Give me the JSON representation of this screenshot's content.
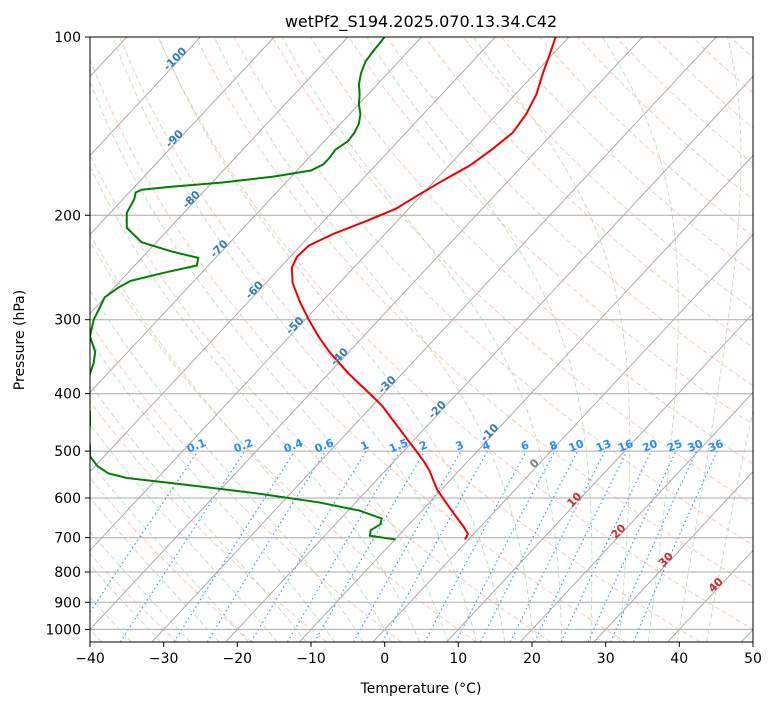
{
  "chart_data": {
    "type": "line",
    "title": "wetPf2_S194.2025.070.13.34.C42",
    "xlabel": "Temperature (°C)",
    "ylabel": "Pressure (hPa)",
    "xlim": [
      -40,
      50
    ],
    "ylim": [
      1050,
      100
    ],
    "y_scale": "log",
    "x_ticks": [
      -40,
      -30,
      -20,
      -10,
      0,
      10,
      20,
      30,
      40,
      50
    ],
    "x_tick_labels": [
      "−40",
      "−30",
      "−20",
      "−10",
      "0",
      "10",
      "20",
      "30",
      "40",
      "50"
    ],
    "y_ticks": [
      100,
      200,
      300,
      400,
      500,
      600,
      700,
      800,
      900,
      1000
    ],
    "y_tick_labels": [
      "100",
      "200",
      "300",
      "400",
      "500",
      "600",
      "700",
      "800",
      "900",
      "1000"
    ],
    "grid": true,
    "skew_degrees_per_log10_pressure": 75,
    "colors": {
      "temperature": "#ee0000",
      "dewpoint": "#008000",
      "mixing_ratio": "#1e8fff",
      "dry_adiabat": "#ff9977",
      "moist_adiabat": "#99cc99",
      "isotherm": "#aaaaaa",
      "isobar": "#aaaaaa",
      "zero_isotherm_label": "#808080"
    },
    "series": [
      {
        "name": "",
        "role": "temperature",
        "pressure": [
          705,
          690,
          670,
          640,
          610,
          580,
          560,
          540,
          520,
          500,
          480,
          460,
          440,
          420,
          400,
          370,
          340,
          320,
          300,
          280,
          260,
          245,
          235,
          225,
          215,
          205,
          195,
          185,
          175,
          165,
          155,
          145,
          135,
          125,
          115,
          108,
          100
        ],
        "temp_skewed_x": [
          10.9,
          11.3,
          10.7,
          9.5,
          8.3,
          7.1,
          6.6,
          6.1,
          5.3,
          4.3,
          3.2,
          2.1,
          0.9,
          -0.3,
          -2.0,
          -4.9,
          -7.5,
          -9.0,
          -10.3,
          -11.5,
          -12.5,
          -12.6,
          -11.9,
          -10.3,
          -7.0,
          -2.7,
          1.5,
          4.5,
          7.8,
          11.5,
          14.5,
          17.4,
          19.2,
          20.6,
          21.5,
          22.3,
          23.2
        ]
      },
      {
        "name": "",
        "role": "dewpoint",
        "pressure": [
          705,
          695,
          680,
          665,
          650,
          630,
          610,
          590,
          570,
          555,
          545,
          530,
          510,
          490,
          470,
          450,
          430,
          410,
          390,
          370,
          355,
          340,
          320,
          300,
          285,
          275,
          265,
          258,
          250,
          243,
          236,
          230,
          222,
          210,
          198,
          188,
          183,
          181,
          179,
          176,
          172,
          168,
          164,
          160,
          155,
          150,
          145,
          140,
          135,
          130,
          125,
          120,
          115,
          110,
          105,
          100
        ],
        "temp_skewed_x": [
          1.5,
          -2.0,
          -1.9,
          -0.6,
          -0.4,
          -3.4,
          -9.0,
          -17.0,
          -27.0,
          -35.0,
          -37.5,
          -39.0,
          -40.0,
          -40.0,
          -40.2,
          -40.0,
          -40.0,
          -40.3,
          -40.5,
          -40.0,
          -39.5,
          -39.3,
          -40.0,
          -39.5,
          -38.6,
          -38.0,
          -36.2,
          -34.5,
          -30.0,
          -25.5,
          -25.3,
          -29.0,
          -33.0,
          -35.0,
          -35.0,
          -34.0,
          -33.8,
          -33.0,
          -29.0,
          -22.0,
          -15.0,
          -10.0,
          -8.3,
          -7.5,
          -6.7,
          -5.0,
          -4.1,
          -3.5,
          -3.3,
          -3.5,
          -3.4,
          -3.5,
          -3.2,
          -2.6,
          -1.4,
          0.0
        ]
      }
    ],
    "mixing_ratio_labels": [
      "0.1",
      "0.2",
      "0.4",
      "0.6",
      "1",
      "1.5",
      "2",
      "3",
      "4",
      "6",
      "8",
      "10",
      "13",
      "16",
      "20",
      "25",
      "30",
      "36"
    ],
    "dry_adiabat_labels": [
      "-100",
      "-90",
      "-80",
      "-70",
      "-60",
      "-50",
      "-40",
      "-30",
      "-20",
      "-10"
    ],
    "moist_adiabat_labels": [
      "0",
      "10",
      "20",
      "30",
      "40"
    ]
  }
}
